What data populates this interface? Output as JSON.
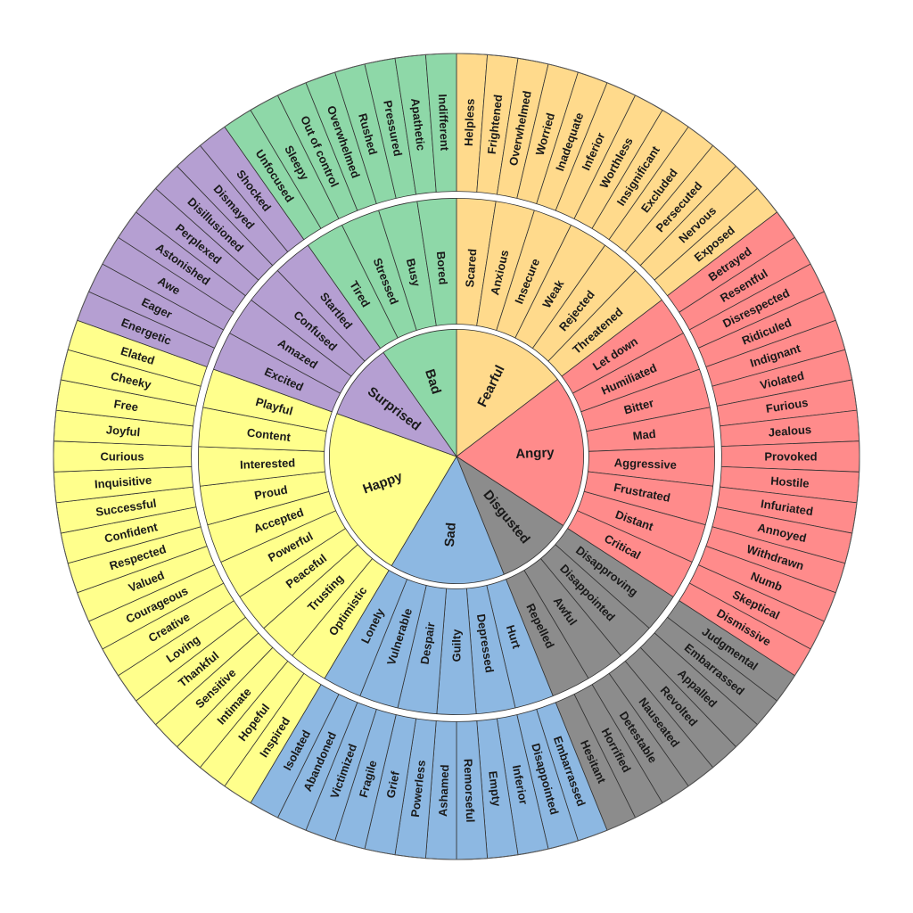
{
  "wheel": {
    "categories": [
      {
        "name": "Fearful",
        "color": "#FFDA8C",
        "children": [
          {
            "name": "Scared",
            "children": [
              "Helpless",
              "Frightened"
            ]
          },
          {
            "name": "Anxious",
            "children": [
              "Overwhelmed",
              "Worried"
            ]
          },
          {
            "name": "Insecure",
            "children": [
              "Inadequate",
              "Inferior"
            ]
          },
          {
            "name": "Weak",
            "children": [
              "Worthless",
              "Insignificant"
            ]
          },
          {
            "name": "Rejected",
            "children": [
              "Excluded",
              "Persecuted"
            ]
          },
          {
            "name": "Threatened",
            "children": [
              "Nervous",
              "Exposed"
            ]
          }
        ]
      },
      {
        "name": "Angry",
        "color": "#FF8B8B",
        "children": [
          {
            "name": "Let down",
            "children": [
              "Betrayed",
              "Resentful"
            ]
          },
          {
            "name": "Humiliated",
            "children": [
              "Disrespected",
              "Ridiculed"
            ]
          },
          {
            "name": "Bitter",
            "children": [
              "Indignant",
              "Violated"
            ]
          },
          {
            "name": "Mad",
            "children": [
              "Furious",
              "Jealous"
            ]
          },
          {
            "name": "Aggressive",
            "children": [
              "Provoked",
              "Hostile"
            ]
          },
          {
            "name": "Frustrated",
            "children": [
              "Infuriated",
              "Annoyed"
            ]
          },
          {
            "name": "Distant",
            "children": [
              "Withdrawn",
              "Numb"
            ]
          },
          {
            "name": "Critical",
            "children": [
              "Skeptical",
              "Dismissive"
            ]
          }
        ]
      },
      {
        "name": "Disgusted",
        "color": "#8C8C8C",
        "children": [
          {
            "name": "Disapproving",
            "children": [
              "Judgmental",
              "Embarrassed"
            ]
          },
          {
            "name": "Disappointed",
            "children": [
              "Appalled",
              "Revolted"
            ]
          },
          {
            "name": "Awful",
            "children": [
              "Nauseated",
              "Detestable"
            ]
          },
          {
            "name": "Repelled",
            "children": [
              "Horrified",
              "Hesitant"
            ]
          }
        ]
      },
      {
        "name": "Sad",
        "color": "#8DB8E2",
        "children": [
          {
            "name": "Hurt",
            "children": [
              "Embarrassed",
              "Disappointed"
            ]
          },
          {
            "name": "Depressed",
            "children": [
              "Inferior",
              "Empty"
            ]
          },
          {
            "name": "Guilty",
            "children": [
              "Remorseful",
              "Ashamed"
            ]
          },
          {
            "name": "Despair",
            "children": [
              "Powerless",
              "Grief"
            ]
          },
          {
            "name": "Vulnerable",
            "children": [
              "Fragile",
              "Victimized"
            ]
          },
          {
            "name": "Lonely",
            "children": [
              "Abandoned",
              "Isolated"
            ]
          }
        ]
      },
      {
        "name": "Happy",
        "color": "#FFFF8C",
        "children": [
          {
            "name": "Optimistic",
            "children": [
              "Inspired",
              "Hopeful"
            ]
          },
          {
            "name": "Trusting",
            "children": [
              "Intimate",
              "Sensitive"
            ]
          },
          {
            "name": "Peaceful",
            "children": [
              "Thankful",
              "Loving"
            ]
          },
          {
            "name": "Powerful",
            "children": [
              "Creative",
              "Courageous"
            ]
          },
          {
            "name": "Accepted",
            "children": [
              "Valued",
              "Respected"
            ]
          },
          {
            "name": "Proud",
            "children": [
              "Confident",
              "Successful"
            ]
          },
          {
            "name": "Interested",
            "children": [
              "Inquisitive",
              "Curious"
            ]
          },
          {
            "name": "Content",
            "children": [
              "Joyful",
              "Free"
            ]
          },
          {
            "name": "Playful",
            "children": [
              "Cheeky",
              "Elated"
            ]
          }
        ]
      },
      {
        "name": "Surprised",
        "color": "#B59FD2",
        "children": [
          {
            "name": "Excited",
            "children": [
              "Energetic",
              "Eager"
            ]
          },
          {
            "name": "Amazed",
            "children": [
              "Awe",
              "Astonished"
            ]
          },
          {
            "name": "Confused",
            "children": [
              "Perplexed",
              "Disillusioned"
            ]
          },
          {
            "name": "Startled",
            "children": [
              "Dismayed",
              "Shocked"
            ]
          }
        ]
      },
      {
        "name": "Bad",
        "color": "#8ED8A8",
        "children": [
          {
            "name": "Tired",
            "children": [
              "Unfocused",
              "Sleepy"
            ]
          },
          {
            "name": "Stressed",
            "children": [
              "Out of control",
              "Overwhelmed"
            ]
          },
          {
            "name": "Busy",
            "children": [
              "Rushed",
              "Pressured"
            ]
          },
          {
            "name": "Bored",
            "children": [
              "Apathetic",
              "Indifferent"
            ]
          }
        ]
      }
    ]
  }
}
